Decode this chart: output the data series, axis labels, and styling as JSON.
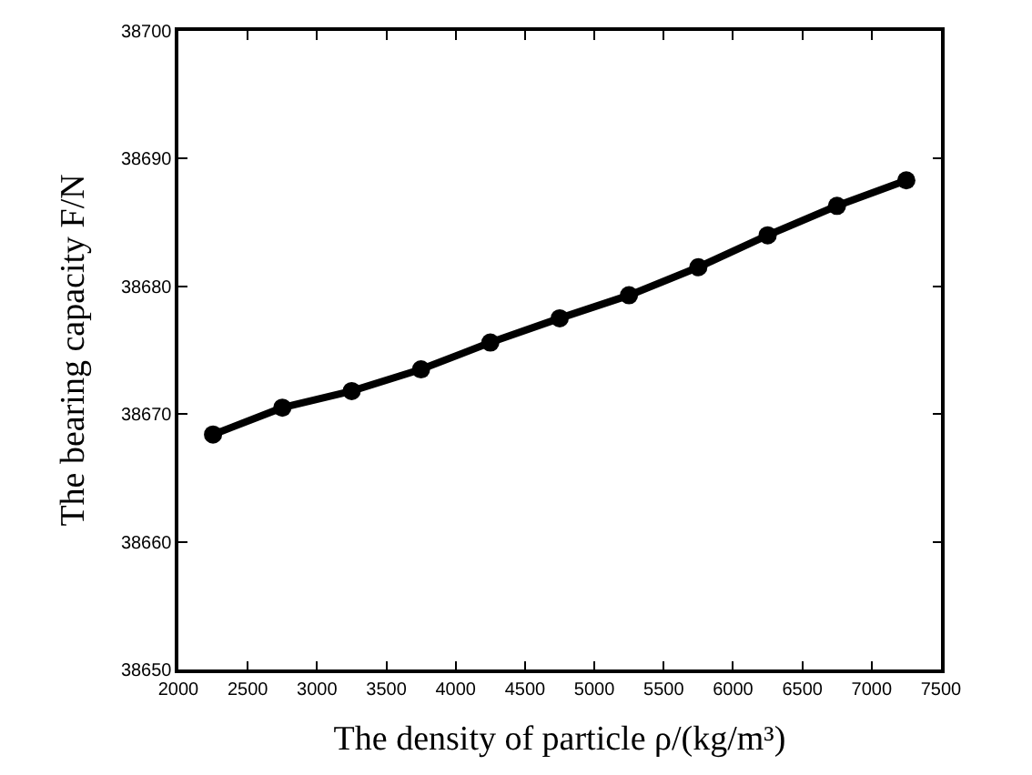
{
  "chart_data": {
    "type": "line",
    "xlabel": "The density of particle ρ/(kg/m³)",
    "ylabel": "The bearing capacity F/N",
    "x": [
      2250,
      2750,
      3250,
      3750,
      4250,
      4750,
      5250,
      5750,
      6250,
      6750,
      7250
    ],
    "series": [
      {
        "color": "#000000",
        "values": [
          38668.4,
          38670.5,
          38671.8,
          38673.5,
          38675.6,
          38677.5,
          38679.3,
          38681.5,
          38684.0,
          38686.3,
          38688.3
        ]
      }
    ],
    "xlim": [
      2000,
      7500
    ],
    "xticks": [
      2000,
      2500,
      3000,
      3500,
      4000,
      4500,
      5000,
      5500,
      6000,
      6500,
      7000,
      7500
    ],
    "ylim": [
      38650,
      38700
    ],
    "yticks": [
      38650,
      38660,
      38670,
      38680,
      38690,
      38700
    ],
    "legend": false,
    "marker": "circle",
    "line_style": "solid"
  }
}
